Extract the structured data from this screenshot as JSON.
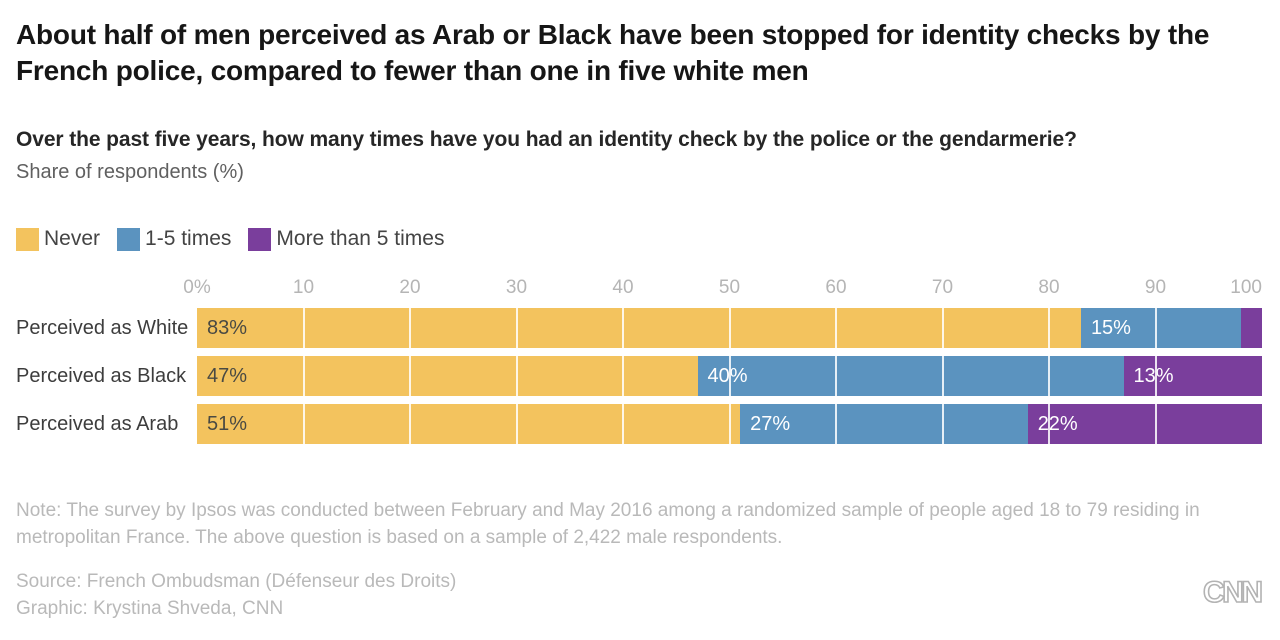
{
  "header": {
    "title": "About half of men perceived as Arab or Black have been stopped for identity checks by the French police, compared to fewer than one in five white men",
    "question": "Over the past five years, how many times have you had an identity check by the police or the gendarmerie?",
    "share_label": "Share of respondents (%)"
  },
  "chart_data": {
    "type": "bar",
    "stacked": true,
    "orientation": "horizontal",
    "title": "Over the past five years, how many times have you had an identity check by the police or the gendarmerie?",
    "ylabel": "",
    "xlabel": "Share of respondents (%)",
    "xlim": [
      0,
      100
    ],
    "grid": "vertical-white-over-bars",
    "legend_position": "top-left",
    "categories": [
      "Perceived as White",
      "Perceived as Black",
      "Perceived as Arab"
    ],
    "series": [
      {
        "name": "Never",
        "color": "#f3c35e",
        "label_color": "#4a4a43",
        "values": [
          83,
          47,
          51
        ]
      },
      {
        "name": "1-5 times",
        "color": "#5b93bf",
        "label_color": "#ffffff",
        "values": [
          15,
          40,
          27
        ]
      },
      {
        "name": "More than 5 times",
        "color": "#7a3e9c",
        "label_color": "#ffffff",
        "values": [
          2,
          13,
          22
        ]
      }
    ],
    "min_label_value": 5,
    "label_suffix": "%",
    "x_ticks": [
      "0%",
      "10",
      "20",
      "30",
      "40",
      "50",
      "60",
      "70",
      "80",
      "90",
      "100"
    ],
    "gridline_steps": [
      10,
      20,
      30,
      40,
      50,
      60,
      70,
      80,
      90
    ]
  },
  "footer": {
    "note": "Note: The survey by Ipsos was conducted between February and May 2016 among a randomized sample of people aged 18 to 79 residing in metropolitan France. The above question is based on a sample of 2,422 male respondents.",
    "source": "Source: French Ombudsman (Défenseur des Droits)",
    "credit": "Graphic: Krystina Shveda, CNN"
  },
  "branding": {
    "logo_text": "CNN"
  }
}
